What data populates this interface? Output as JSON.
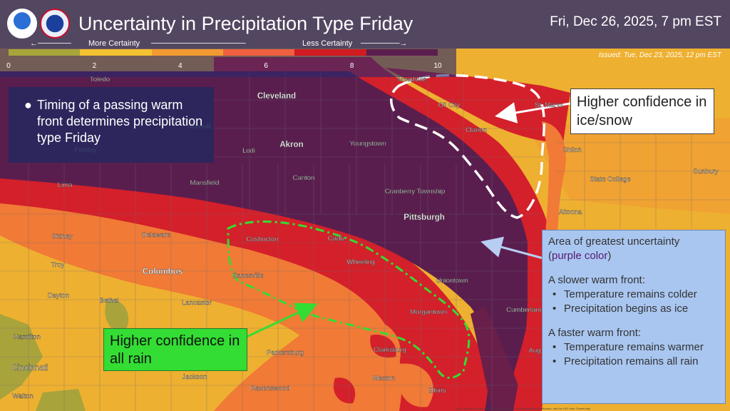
{
  "header": {
    "title": "Uncertainty in Precipitation Type Friday",
    "datetime": "Fri, Dec 26, 2025, 7 pm EST",
    "issued": "Issued: Tue, Dec 23, 2025, 12 pm EST"
  },
  "scale": {
    "more_label": "More Certainty",
    "less_label": "Less Certainty",
    "ticks": [
      "0",
      "2",
      "4",
      "6",
      "8",
      "10"
    ],
    "colors": [
      "#a8a63a",
      "#f2c232",
      "#f29a32",
      "#f06040",
      "#d11a22",
      "#5a1e4e"
    ]
  },
  "bullet": {
    "text": "Timing of a passing warm front determines precipitation type Friday"
  },
  "annotations": {
    "ice_snow": "Higher confidence in ice/snow",
    "rain": "Higher confidence in all rain",
    "uncertainty_title": "Area of greatest uncertainty",
    "uncertainty_color": "purple color",
    "slower_heading": "A slower warm front:",
    "slower_1": "Temperature remains colder",
    "slower_2": "Precipitation begins as ice",
    "faster_heading": "A faster warm front:",
    "faster_1": "Temperature remains warmer",
    "faster_2": "Precipitation remains all rain"
  },
  "cities": [
    {
      "name": "Toledo"
    },
    {
      "name": "Cleveland"
    },
    {
      "name": "Meadville"
    },
    {
      "name": "Oil City"
    },
    {
      "name": "St. Marys"
    },
    {
      "name": "Clarion"
    },
    {
      "name": "Shiloh"
    },
    {
      "name": "Sunbury"
    },
    {
      "name": "State College"
    },
    {
      "name": "Akron"
    },
    {
      "name": "Youngstown"
    },
    {
      "name": "Lodi"
    },
    {
      "name": "Findlay"
    },
    {
      "name": "Norwalk"
    },
    {
      "name": "Canton"
    },
    {
      "name": "Mansfield"
    },
    {
      "name": "Lima"
    },
    {
      "name": "Cranberry Township"
    },
    {
      "name": "Pittsburgh"
    },
    {
      "name": "Altoona"
    },
    {
      "name": "Sidney"
    },
    {
      "name": "Delaware"
    },
    {
      "name": "Coshocton"
    },
    {
      "name": "Cadiz"
    },
    {
      "name": "Troy"
    },
    {
      "name": "Columbus"
    },
    {
      "name": "Zanesville"
    },
    {
      "name": "Wheeling"
    },
    {
      "name": "Uniontown"
    },
    {
      "name": "Dayton"
    },
    {
      "name": "Bethel"
    },
    {
      "name": "Lancaster"
    },
    {
      "name": "Morgantown"
    },
    {
      "name": "Cumberland"
    },
    {
      "name": "Hamilton"
    },
    {
      "name": "Parkersburg"
    },
    {
      "name": "Clarksburg"
    },
    {
      "name": "Cincinnati"
    },
    {
      "name": "Jackson"
    },
    {
      "name": "Weston"
    },
    {
      "name": "Walton"
    },
    {
      "name": "Ravenswood"
    },
    {
      "name": "Elkins"
    },
    {
      "name": "Aug"
    }
  ],
  "credit": "Esri, TomTom, Garmin, FAO, NOAA, USGS, © OpenStreetMap contributors, and the GIS User Community"
}
